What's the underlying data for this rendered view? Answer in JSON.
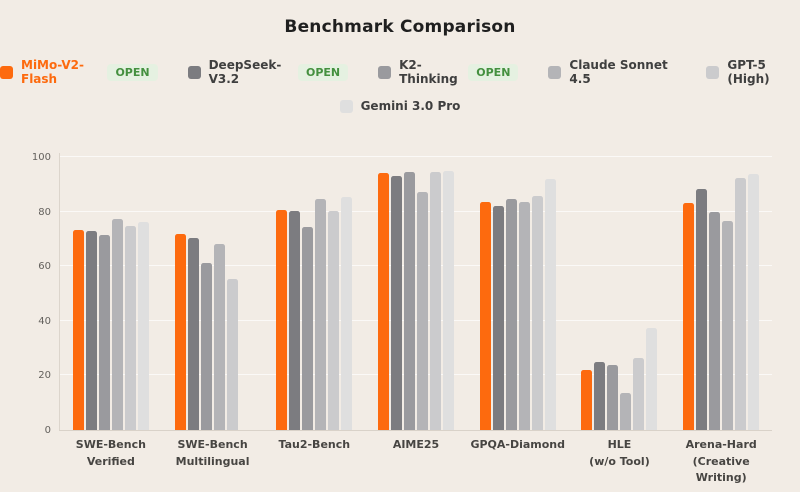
{
  "page": {
    "background_color": "#f2ece5"
  },
  "legend": {
    "open_badge_label": "OPEN",
    "open_badge_bg": "#e5f1e1",
    "open_badge_text_color": "#44903f",
    "rows": [
      [
        0,
        1,
        2,
        3,
        4
      ],
      [
        5
      ]
    ]
  },
  "axes": {
    "axis_line_color": "#dcd5cc",
    "grid_line_color": "#faf6f1",
    "tick_text_color": "#64615d",
    "category_text_color": "#474542"
  },
  "chart_data": {
    "type": "bar",
    "title": "Benchmark Comparison",
    "xlabel": "",
    "ylabel": "",
    "ylim": [
      0,
      100
    ],
    "yticks": [
      0,
      20,
      40,
      60,
      80,
      100
    ],
    "grid": true,
    "legend_position": "top",
    "categories": [
      "SWE-Bench\nVerified",
      "SWE-Bench\nMultilingual",
      "Tau2-Bench",
      "AIME25",
      "GPQA-Diamond",
      "HLE\n(w/o Tool)",
      "Arena-Hard\n(Creative Writing)"
    ],
    "series": [
      {
        "name": "MiMo-V2-Flash",
        "color": "#fd6a0e",
        "label_color": "#fd6a0e",
        "open": true,
        "values": [
          73.4,
          71.8,
          80.5,
          94.1,
          83.6,
          22.0,
          83.1
        ]
      },
      {
        "name": "DeepSeek-V3.2",
        "color": "#7c7c80",
        "open": true,
        "values": [
          73.0,
          70.2,
          80.3,
          93.1,
          82.1,
          24.9,
          88.4
        ]
      },
      {
        "name": "K2-Thinking",
        "color": "#9a9a9e",
        "open": true,
        "values": [
          71.3,
          61.1,
          74.3,
          94.5,
          84.5,
          23.9,
          80.0
        ]
      },
      {
        "name": "Claude Sonnet 4.5",
        "color": "#b4b4b7",
        "open": false,
        "values": [
          77.2,
          68.0,
          84.7,
          87.0,
          83.4,
          13.7,
          76.4
        ]
      },
      {
        "name": "GPT-5 (High)",
        "color": "#cbcbcd",
        "open": false,
        "values": [
          74.9,
          55.3,
          80.1,
          94.6,
          85.7,
          26.3,
          92.3
        ]
      },
      {
        "name": "Gemini 3.0 Pro",
        "color": "#dfdfdf",
        "open": false,
        "values": [
          76.2,
          null,
          85.4,
          95.0,
          91.9,
          37.5,
          93.7
        ]
      }
    ]
  }
}
